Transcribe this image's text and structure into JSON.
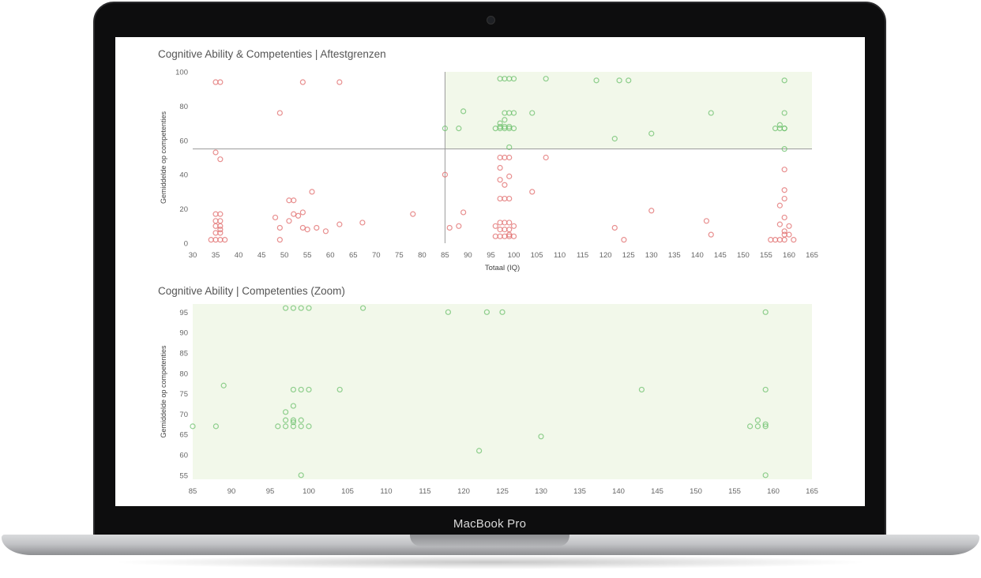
{
  "device": {
    "label": "MacBook Pro"
  },
  "colors": {
    "red": "#e06a6a",
    "dark_red": "#c53b3b",
    "green": "#6cc06c",
    "dark_green": "#3f9e3f",
    "green_region": "#f2f8ea",
    "refline": "#9a9a9a"
  },
  "chart_data": [
    {
      "type": "scatter",
      "title": "Cognitive Ability & Competenties | Aftestgrenzen",
      "xlabel": "Totaal (IQ)",
      "ylabel": "Gemiddelde op competenties",
      "xlim": [
        30,
        165
      ],
      "ylim": [
        0,
        100
      ],
      "xticks": [
        30,
        35,
        40,
        45,
        50,
        55,
        60,
        65,
        70,
        75,
        80,
        85,
        90,
        95,
        100,
        105,
        110,
        115,
        120,
        125,
        130,
        135,
        140,
        145,
        150,
        155,
        160,
        165
      ],
      "yticks": [
        0,
        20,
        40,
        60,
        80,
        100
      ],
      "thresholds": {
        "x": 85,
        "y": 55
      },
      "highlight_region": {
        "x_from": 85,
        "y_from": 55
      },
      "series": [
        {
          "color": "red",
          "points": [
            [
              35,
              94
            ],
            [
              36,
              94
            ],
            [
              35,
              53
            ],
            [
              36,
              49
            ],
            [
              35,
              17
            ],
            [
              36,
              17
            ],
            [
              35,
              13
            ],
            [
              36,
              13
            ],
            [
              35,
              10
            ],
            [
              36,
              10
            ],
            [
              35,
              6
            ],
            [
              36,
              6
            ],
            [
              35,
              2
            ],
            [
              36,
              2
            ],
            [
              34,
              2
            ],
            [
              37,
              2
            ],
            [
              36,
              8
            ],
            [
              49,
              76
            ],
            [
              54,
              94
            ],
            [
              62,
              94
            ],
            [
              48,
              15
            ],
            [
              51,
              25
            ],
            [
              52,
              25
            ],
            [
              56,
              30
            ],
            [
              52,
              17
            ],
            [
              53,
              16
            ],
            [
              54,
              18
            ],
            [
              51,
              13
            ],
            [
              54,
              9
            ],
            [
              55,
              8
            ],
            [
              57,
              9
            ],
            [
              59,
              7
            ],
            [
              49,
              9
            ],
            [
              49,
              2
            ],
            [
              62,
              11
            ],
            [
              67,
              12
            ],
            [
              78,
              17
            ],
            [
              85,
              40
            ],
            [
              86,
              9
            ],
            [
              88,
              10
            ],
            [
              89,
              18
            ],
            [
              97,
              50
            ],
            [
              98,
              50
            ],
            [
              99,
              50
            ],
            [
              97,
              44
            ],
            [
              97,
              37
            ],
            [
              98,
              34
            ],
            [
              99,
              39
            ],
            [
              97,
              26
            ],
            [
              98,
              26
            ],
            [
              99,
              26
            ],
            [
              97,
              12
            ],
            [
              98,
              12
            ],
            [
              99,
              12
            ],
            [
              97,
              8
            ],
            [
              98,
              8
            ],
            [
              99,
              8
            ],
            [
              97,
              4
            ],
            [
              98,
              4
            ],
            [
              99,
              4
            ],
            [
              96,
              10
            ],
            [
              100,
              10
            ],
            [
              100,
              4
            ],
            [
              96,
              4
            ],
            [
              99,
              5
            ],
            [
              104,
              30
            ],
            [
              107,
              50
            ],
            [
              122,
              9
            ],
            [
              124,
              2
            ],
            [
              130,
              19
            ],
            [
              142,
              13
            ],
            [
              143,
              5
            ],
            [
              159,
              43
            ],
            [
              159,
              31
            ],
            [
              159,
              26
            ],
            [
              158,
              22
            ],
            [
              159,
              15
            ],
            [
              158,
              11
            ],
            [
              159,
              7
            ],
            [
              159,
              5
            ],
            [
              160,
              5
            ],
            [
              157,
              2
            ],
            [
              158,
              2
            ],
            [
              159,
              2
            ],
            [
              161,
              2
            ],
            [
              160,
              10
            ],
            [
              156,
              2
            ]
          ]
        },
        {
          "color": "green",
          "points": [
            [
              97,
              96
            ],
            [
              98,
              96
            ],
            [
              99,
              96
            ],
            [
              100,
              96
            ],
            [
              107,
              96
            ],
            [
              118,
              95
            ],
            [
              123,
              95
            ],
            [
              125,
              95
            ],
            [
              159,
              95
            ],
            [
              89,
              77
            ],
            [
              98,
              76
            ],
            [
              99,
              76
            ],
            [
              100,
              76
            ],
            [
              104,
              76
            ],
            [
              143,
              76
            ],
            [
              159,
              76
            ],
            [
              85,
              67
            ],
            [
              88,
              67
            ],
            [
              96,
              67
            ],
            [
              97,
              67
            ],
            [
              98,
              67
            ],
            [
              99,
              67
            ],
            [
              100,
              67
            ],
            [
              97,
              70
            ],
            [
              98,
              72
            ],
            [
              97,
              68
            ],
            [
              98,
              68
            ],
            [
              99,
              68
            ],
            [
              122,
              61
            ],
            [
              130,
              64
            ],
            [
              157,
              67
            ],
            [
              158,
              67
            ],
            [
              159,
              67
            ],
            [
              158,
              69
            ],
            [
              159,
              67
            ],
            [
              99,
              56
            ],
            [
              159,
              55
            ]
          ]
        }
      ]
    },
    {
      "type": "scatter",
      "title": "Cognitive Ability | Competenties (Zoom)",
      "xlabel": "",
      "ylabel": "Gemiddelde op competenties",
      "xlim": [
        85,
        165
      ],
      "ylim": [
        54,
        97
      ],
      "xticks": [
        85,
        90,
        95,
        100,
        105,
        110,
        115,
        120,
        125,
        130,
        135,
        140,
        145,
        150,
        155,
        160,
        165
      ],
      "yticks": [
        55,
        60,
        65,
        70,
        75,
        80,
        85,
        90,
        95
      ],
      "highlight_region": {
        "x_from": 85,
        "y_from": 54
      },
      "series": [
        {
          "color": "green",
          "points": [
            [
              97,
              96
            ],
            [
              98,
              96
            ],
            [
              99,
              96
            ],
            [
              100,
              96
            ],
            [
              107,
              96
            ],
            [
              118,
              95
            ],
            [
              123,
              95
            ],
            [
              125,
              95
            ],
            [
              159,
              95
            ],
            [
              89,
              77
            ],
            [
              98,
              76
            ],
            [
              99,
              76
            ],
            [
              100,
              76
            ],
            [
              104,
              76
            ],
            [
              143,
              76
            ],
            [
              159,
              76
            ],
            [
              85,
              67
            ],
            [
              88,
              67
            ],
            [
              96,
              67
            ],
            [
              97,
              67
            ],
            [
              98,
              67
            ],
            [
              99,
              67
            ],
            [
              100,
              67
            ],
            [
              97,
              70.5
            ],
            [
              98,
              72
            ],
            [
              97,
              68.5
            ],
            [
              98,
              68.5
            ],
            [
              99,
              68.5
            ],
            [
              98,
              68
            ],
            [
              122,
              61
            ],
            [
              130,
              64.5
            ],
            [
              157,
              67
            ],
            [
              158,
              67
            ],
            [
              159,
              67
            ],
            [
              158,
              68.5
            ],
            [
              159,
              67.5
            ],
            [
              99,
              55
            ],
            [
              159,
              55
            ]
          ]
        }
      ]
    }
  ]
}
